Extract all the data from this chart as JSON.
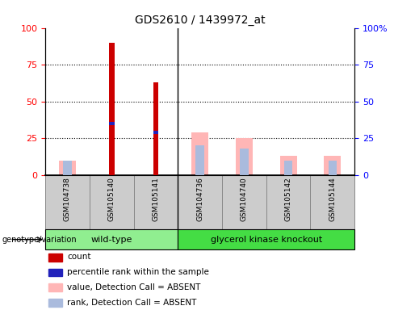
{
  "title": "GDS2610 / 1439972_at",
  "samples": [
    "GSM104738",
    "GSM105140",
    "GSM105141",
    "GSM104736",
    "GSM104740",
    "GSM105142",
    "GSM105144"
  ],
  "count_values": [
    0,
    90,
    63,
    0,
    0,
    0,
    0
  ],
  "percentile_rank_values": [
    0,
    35,
    29,
    0,
    0,
    0,
    0
  ],
  "absent_value": [
    10,
    0,
    0,
    29,
    25,
    13,
    13
  ],
  "absent_rank": [
    10,
    0,
    0,
    20,
    18,
    10,
    10
  ],
  "count_color": "#CC0000",
  "percentile_color": "#2222BB",
  "absent_value_color": "#FFB6B6",
  "absent_rank_color": "#AABBDD",
  "yticks": [
    0,
    25,
    50,
    75,
    100
  ],
  "wt_color": "#90EE90",
  "gk_color": "#44DD44",
  "legend_labels": [
    "count",
    "percentile rank within the sample",
    "value, Detection Call = ABSENT",
    "rank, Detection Call = ABSENT"
  ],
  "legend_colors": [
    "#CC0000",
    "#2222BB",
    "#FFB6B6",
    "#AABBDD"
  ],
  "group_label": "genotype/variation",
  "background_color": "#ffffff",
  "title_fontsize": 10,
  "bar_fontsize": 6.5,
  "legend_fontsize": 7.5,
  "group_fontsize": 8,
  "label_fontsize": 8
}
